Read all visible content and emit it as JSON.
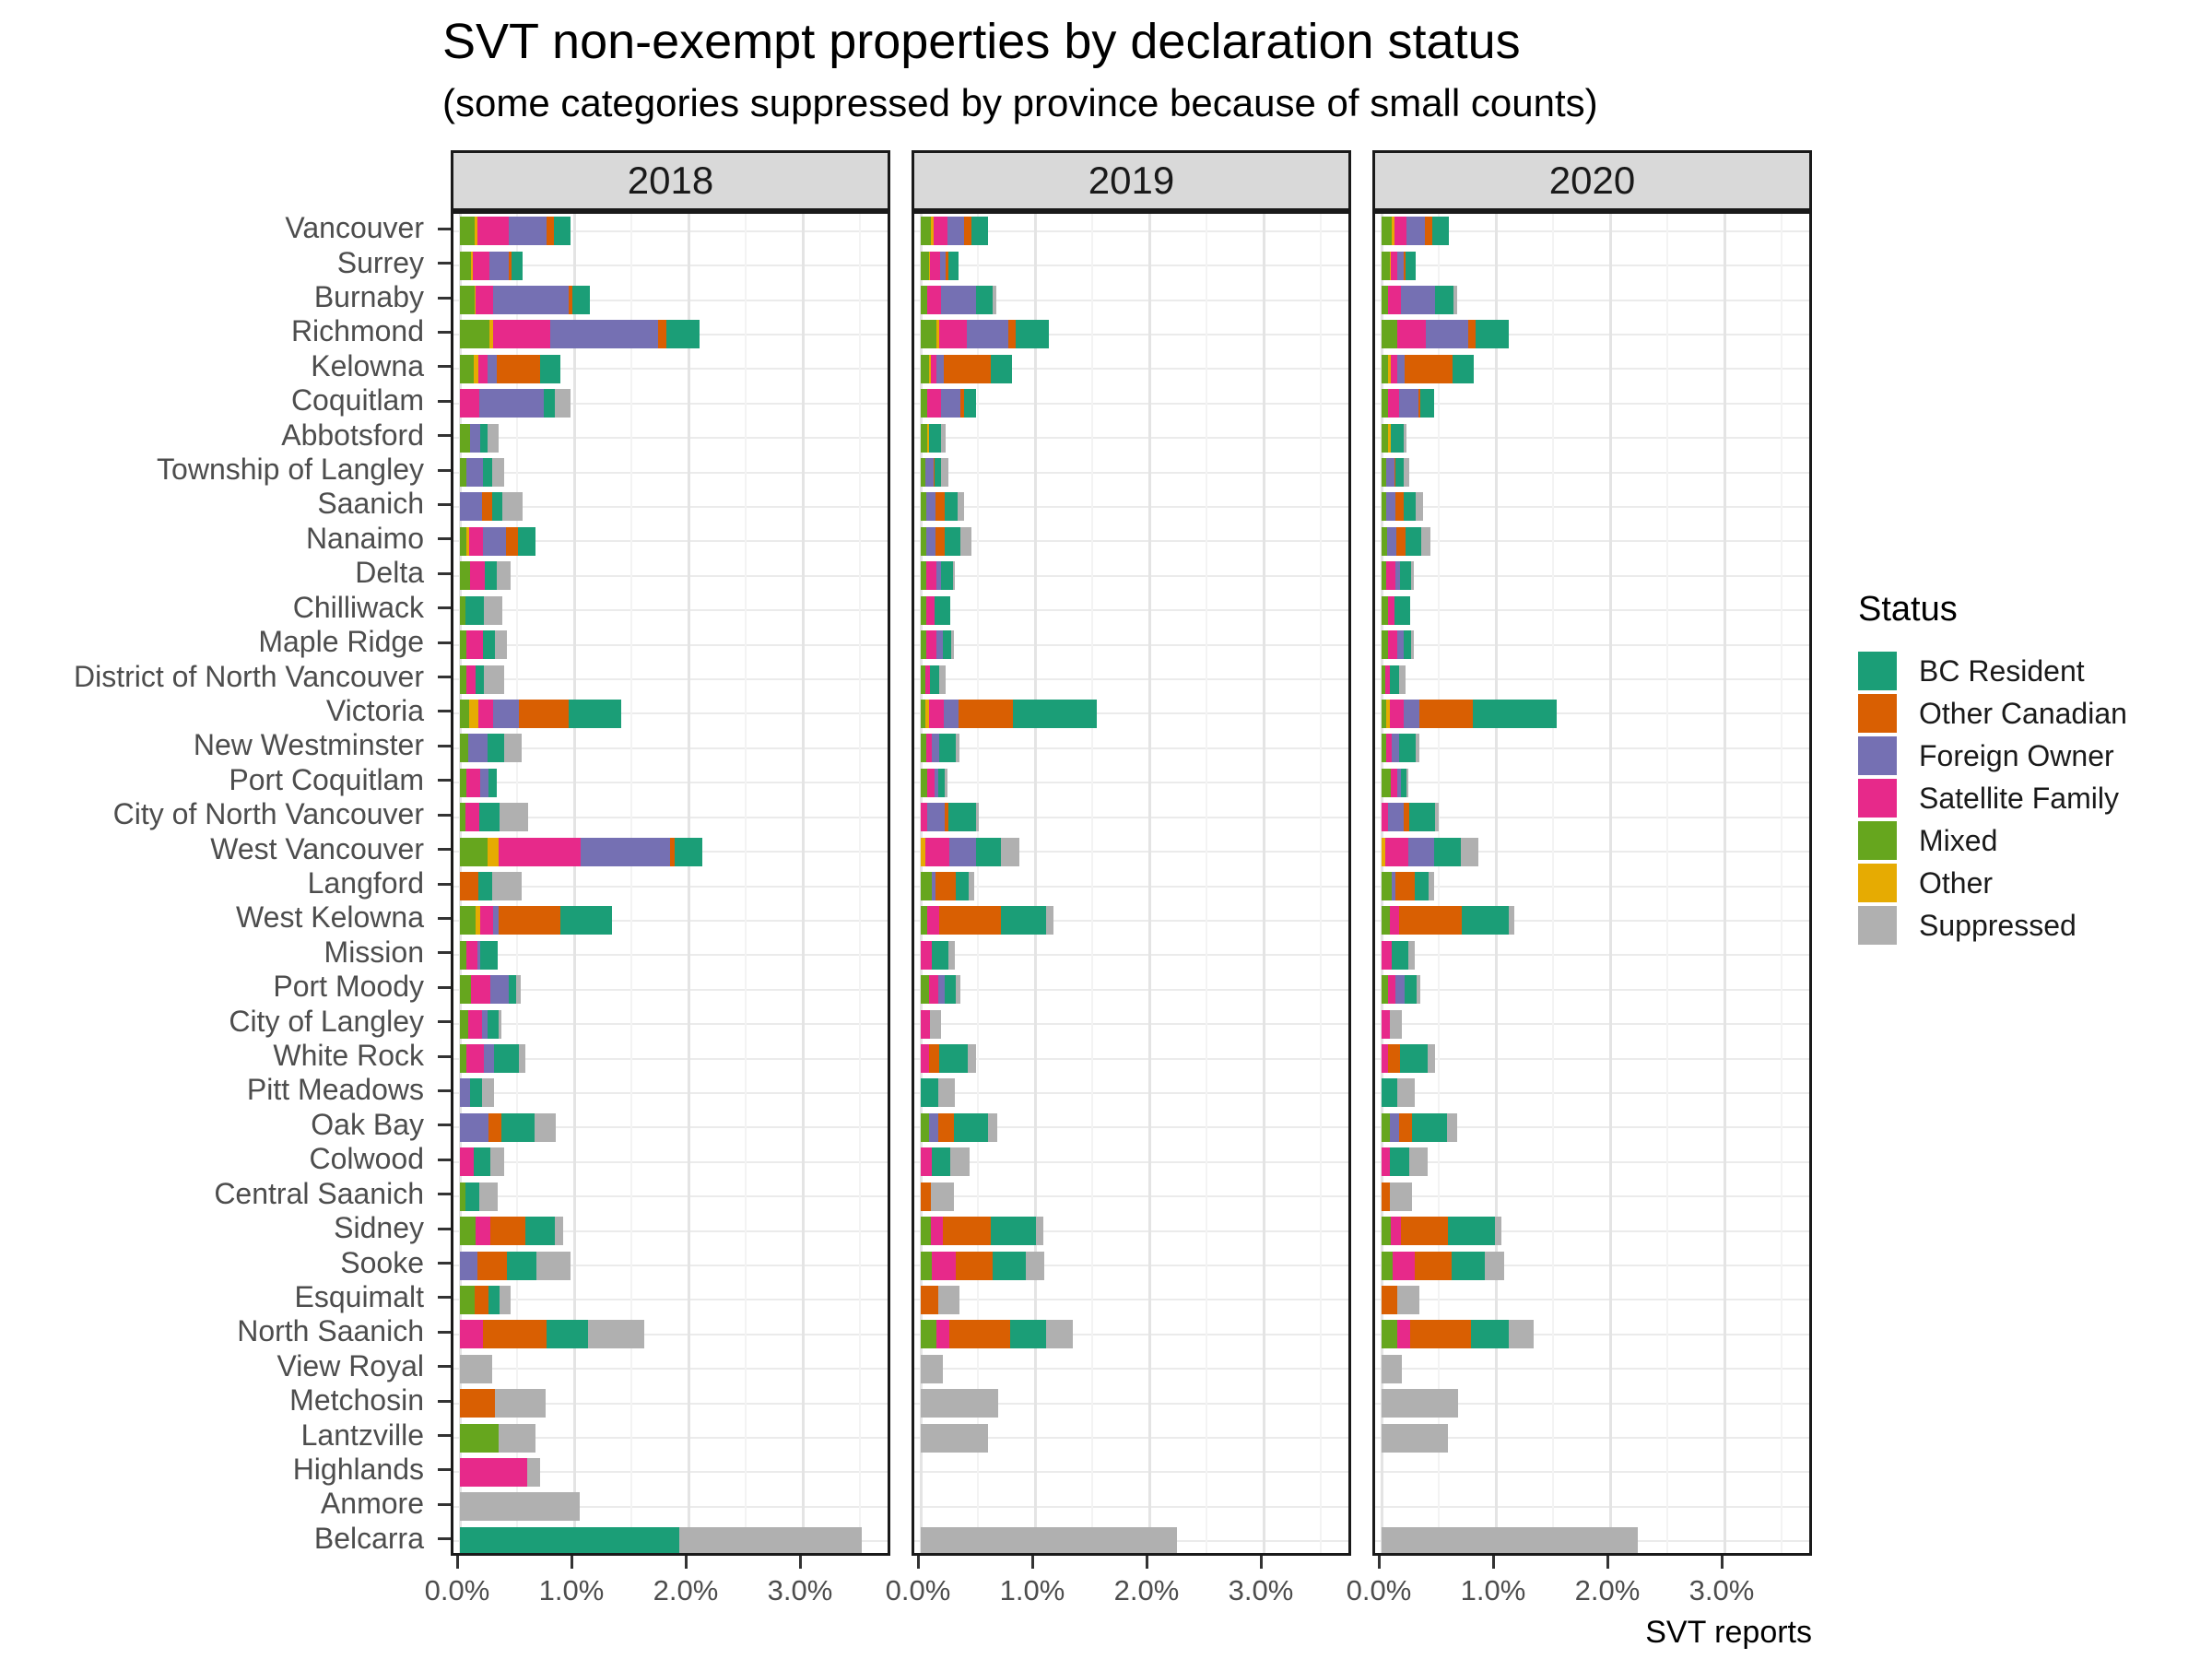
{
  "title": "SVT non-exempt properties by declaration status",
  "subtitle": "(some categories suppressed by province because of small counts)",
  "legend": {
    "title": "Status",
    "items": [
      {
        "label": "BC Resident",
        "color": "#1B9E77"
      },
      {
        "label": "Other Canadian",
        "color": "#D95F02"
      },
      {
        "label": "Foreign Owner",
        "color": "#7570B3"
      },
      {
        "label": "Satellite Family",
        "color": "#E7298A"
      },
      {
        "label": "Mixed",
        "color": "#66A61E"
      },
      {
        "label": "Other",
        "color": "#E6AB02"
      },
      {
        "label": "Suppressed",
        "color": "#B0B0B0"
      }
    ]
  },
  "chart_data": {
    "type": "bar",
    "orientation": "horizontal",
    "stacked": true,
    "grid": true,
    "legend_position": "right",
    "facets": [
      "2018",
      "2019",
      "2020"
    ],
    "xlabel": "SVT reports",
    "x_ticks": [
      "0.0%",
      "1.0%",
      "2.0%",
      "3.0%"
    ],
    "x_tick_values": [
      0,
      1,
      2,
      3
    ],
    "xlim": [
      0,
      3.79
    ],
    "stack_order": [
      "Mixed",
      "Other",
      "Satellite Family",
      "Foreign Owner",
      "Other Canadian",
      "BC Resident",
      "Suppressed"
    ],
    "stack_colors": [
      "#66A61E",
      "#E6AB02",
      "#E7298A",
      "#7570B3",
      "#D95F02",
      "#1B9E77",
      "#B0B0B0"
    ],
    "value_unit": "percent",
    "categories": [
      "Vancouver",
      "Surrey",
      "Burnaby",
      "Richmond",
      "Kelowna",
      "Coquitlam",
      "Abbotsford",
      "Township of Langley",
      "Saanich",
      "Nanaimo",
      "Delta",
      "Chilliwack",
      "Maple Ridge",
      "District of North Vancouver",
      "Victoria",
      "New Westminster",
      "Port Coquitlam",
      "City of North Vancouver",
      "West Vancouver",
      "Langford",
      "West Kelowna",
      "Mission",
      "Port Moody",
      "City of Langley",
      "White Rock",
      "Pitt Meadows",
      "Oak Bay",
      "Colwood",
      "Central Saanich",
      "Sidney",
      "Sooke",
      "Esquimalt",
      "North Saanich",
      "View Royal",
      "Metchosin",
      "Lantzville",
      "Highlands",
      "Anmore",
      "Belcarra"
    ],
    "values": {
      "2018": [
        [
          0.13,
          0.02,
          0.28,
          0.33,
          0.06,
          0.15,
          0
        ],
        [
          0.1,
          0.01,
          0.15,
          0.17,
          0.02,
          0.1,
          0
        ],
        [
          0.13,
          0.01,
          0.15,
          0.66,
          0.03,
          0.16,
          0
        ],
        [
          0.26,
          0.03,
          0.5,
          0.94,
          0.08,
          0.29,
          0
        ],
        [
          0.12,
          0.04,
          0.08,
          0.08,
          0.38,
          0.18,
          0
        ],
        [
          0,
          0,
          0.17,
          0.56,
          0,
          0.1,
          0.14
        ],
        [
          0.09,
          0,
          0,
          0.09,
          0,
          0.06,
          0.1
        ],
        [
          0.06,
          0,
          0,
          0.14,
          0,
          0.08,
          0.11
        ],
        [
          0,
          0,
          0,
          0.19,
          0.09,
          0.09,
          0.18
        ],
        [
          0.06,
          0.02,
          0.12,
          0.2,
          0.11,
          0.15,
          0
        ],
        [
          0.09,
          0,
          0.13,
          0,
          0,
          0.1,
          0.12
        ],
        [
          0.05,
          0,
          0,
          0,
          0,
          0.16,
          0.16
        ],
        [
          0.06,
          0,
          0.14,
          0,
          0,
          0.11,
          0.1
        ],
        [
          0.06,
          0,
          0.08,
          0,
          0,
          0.07,
          0.18
        ],
        [
          0.08,
          0.08,
          0.13,
          0.23,
          0.43,
          0.46,
          0
        ],
        [
          0.07,
          0,
          0,
          0.17,
          0,
          0.15,
          0.15
        ],
        [
          0.06,
          0,
          0.12,
          0.07,
          0,
          0.07,
          0
        ],
        [
          0.05,
          0,
          0.12,
          0,
          0,
          0.18,
          0.25
        ],
        [
          0.24,
          0.1,
          0.72,
          0.78,
          0.04,
          0.24,
          0
        ],
        [
          0,
          0,
          0,
          0,
          0.16,
          0.12,
          0.26
        ],
        [
          0.14,
          0.04,
          0.11,
          0.05,
          0.54,
          0.45,
          0
        ],
        [
          0.06,
          0,
          0.09,
          0.03,
          0,
          0.15,
          0
        ],
        [
          0.1,
          0,
          0.17,
          0.16,
          0,
          0.06,
          0.04
        ],
        [
          0.07,
          0,
          0.12,
          0.05,
          0,
          0.1,
          0.02
        ],
        [
          0.06,
          0,
          0.15,
          0.09,
          0,
          0.22,
          0.05
        ],
        [
          0,
          0,
          0,
          0.09,
          0,
          0.1,
          0.11
        ],
        [
          0,
          0,
          0,
          0.25,
          0.11,
          0.29,
          0.19
        ],
        [
          0,
          0,
          0.12,
          0,
          0,
          0.15,
          0.12
        ],
        [
          0.05,
          0,
          0,
          0,
          0,
          0.12,
          0.16
        ],
        [
          0.14,
          0,
          0.13,
          0,
          0.3,
          0.26,
          0.07
        ],
        [
          0,
          0,
          0,
          0.15,
          0.26,
          0.26,
          0.3
        ],
        [
          0.13,
          0,
          0,
          0,
          0.12,
          0.1,
          0.09
        ],
        [
          0,
          0,
          0.2,
          0,
          0.56,
          0.36,
          0.49
        ],
        [
          0,
          0,
          0,
          0,
          0,
          0,
          0.28
        ],
        [
          0,
          0,
          0,
          0,
          0.31,
          0,
          0.44
        ],
        [
          0.34,
          0,
          0,
          0,
          0,
          0,
          0.32
        ],
        [
          0,
          0,
          0.59,
          0,
          0,
          0,
          0.11
        ],
        [
          0,
          0,
          0,
          0,
          0,
          0,
          1.05
        ],
        [
          0,
          0,
          0,
          0,
          0,
          1.92,
          1.6
        ]
      ],
      "2019": [
        [
          0.09,
          0.02,
          0.12,
          0.15,
          0.06,
          0.15,
          0
        ],
        [
          0.07,
          0.01,
          0.09,
          0.05,
          0.02,
          0.09,
          0
        ],
        [
          0.06,
          0,
          0.12,
          0.3,
          0,
          0.15,
          0.03
        ],
        [
          0.14,
          0.02,
          0.24,
          0.37,
          0.06,
          0.29,
          0
        ],
        [
          0.07,
          0.02,
          0.05,
          0.06,
          0.41,
          0.19,
          0
        ],
        [
          0.06,
          0,
          0.12,
          0.17,
          0.03,
          0.1,
          0
        ],
        [
          0.06,
          0.01,
          0,
          0,
          0,
          0.11,
          0.04
        ],
        [
          0.04,
          0,
          0,
          0.07,
          0.01,
          0.06,
          0.06
        ],
        [
          0.05,
          0,
          0,
          0.08,
          0.08,
          0.11,
          0.06
        ],
        [
          0.05,
          0,
          0,
          0.08,
          0.08,
          0.14,
          0.09
        ],
        [
          0.05,
          0,
          0.09,
          0.04,
          0,
          0.1,
          0.02
        ],
        [
          0.05,
          0,
          0.07,
          0,
          0,
          0.14,
          0
        ],
        [
          0.05,
          0,
          0.09,
          0.05,
          0,
          0.08,
          0.02
        ],
        [
          0.04,
          0,
          0.04,
          0,
          0,
          0.08,
          0.06
        ],
        [
          0.04,
          0.03,
          0.13,
          0.13,
          0.48,
          0.73,
          0
        ],
        [
          0.05,
          0,
          0.05,
          0.06,
          0,
          0.15,
          0.03
        ],
        [
          0.06,
          0,
          0.06,
          0.03,
          0,
          0.06,
          0.02
        ],
        [
          0,
          0,
          0.06,
          0.15,
          0.03,
          0.24,
          0.03
        ],
        [
          0,
          0.04,
          0.21,
          0.23,
          0,
          0.22,
          0.16
        ],
        [
          0.1,
          0,
          0,
          0.03,
          0.18,
          0.11,
          0.05
        ],
        [
          0.06,
          0,
          0.1,
          0,
          0.54,
          0.4,
          0.06
        ],
        [
          0,
          0,
          0.1,
          0,
          0,
          0.14,
          0.06
        ],
        [
          0.07,
          0,
          0.08,
          0.06,
          0,
          0.1,
          0.04
        ],
        [
          0,
          0,
          0.08,
          0,
          0,
          0,
          0.1
        ],
        [
          0,
          0,
          0.07,
          0,
          0.09,
          0.25,
          0.07
        ],
        [
          0,
          0,
          0,
          0,
          0,
          0.15,
          0.15
        ],
        [
          0.07,
          0,
          0,
          0.08,
          0.14,
          0.3,
          0.08
        ],
        [
          0,
          0,
          0.1,
          0,
          0,
          0.16,
          0.17
        ],
        [
          0,
          0,
          0,
          0,
          0.09,
          0,
          0.2
        ],
        [
          0.09,
          0,
          0.1,
          0,
          0.42,
          0.4,
          0.06
        ],
        [
          0.1,
          0,
          0.21,
          0,
          0.32,
          0.29,
          0.16
        ],
        [
          0,
          0,
          0,
          0,
          0.15,
          0,
          0.19
        ],
        [
          0.14,
          0,
          0.11,
          0,
          0.53,
          0.32,
          0.23
        ],
        [
          0,
          0,
          0,
          0,
          0,
          0,
          0.19
        ],
        [
          0,
          0,
          0,
          0,
          0,
          0,
          0.68
        ],
        [
          0,
          0,
          0,
          0,
          0,
          0,
          0.59
        ],
        [
          0,
          0,
          0,
          0,
          0,
          0,
          0
        ],
        [
          0,
          0,
          0,
          0,
          0,
          0,
          0
        ],
        [
          0,
          0,
          0,
          0,
          0,
          0,
          2.24
        ]
      ],
      "2020": [
        [
          0.09,
          0.02,
          0.11,
          0.16,
          0.06,
          0.15,
          0
        ],
        [
          0.07,
          0.01,
          0.06,
          0.05,
          0.02,
          0.09,
          0
        ],
        [
          0.06,
          0,
          0.11,
          0.3,
          0,
          0.16,
          0.03
        ],
        [
          0.14,
          0,
          0.25,
          0.37,
          0.06,
          0.29,
          0
        ],
        [
          0.06,
          0.02,
          0.06,
          0.06,
          0.42,
          0.19,
          0
        ],
        [
          0.06,
          0,
          0.09,
          0.17,
          0.02,
          0.12,
          0
        ],
        [
          0.06,
          0.02,
          0,
          0,
          0,
          0.11,
          0.03
        ],
        [
          0.04,
          0,
          0,
          0.07,
          0.01,
          0.07,
          0.05
        ],
        [
          0.04,
          0,
          0,
          0.08,
          0.07,
          0.11,
          0.06
        ],
        [
          0.05,
          0,
          0,
          0.08,
          0.08,
          0.14,
          0.08
        ],
        [
          0.04,
          0,
          0.08,
          0.04,
          0,
          0.1,
          0.02
        ],
        [
          0.06,
          0,
          0.05,
          0,
          0,
          0.14,
          0
        ],
        [
          0.06,
          0,
          0.08,
          0.05,
          0,
          0.07,
          0.02
        ],
        [
          0.03,
          0,
          0.04,
          0,
          0,
          0.08,
          0.06
        ],
        [
          0.04,
          0.03,
          0.12,
          0.14,
          0.47,
          0.73,
          0
        ],
        [
          0.04,
          0,
          0.05,
          0.06,
          0,
          0.15,
          0.03
        ],
        [
          0.08,
          0,
          0.06,
          0.03,
          0,
          0.05,
          0.01
        ],
        [
          0,
          0,
          0.06,
          0.13,
          0.05,
          0.23,
          0.03
        ],
        [
          0,
          0.03,
          0.2,
          0.23,
          0,
          0.23,
          0.16
        ],
        [
          0.09,
          0,
          0,
          0.03,
          0.17,
          0.12,
          0.05
        ],
        [
          0.07,
          0,
          0.08,
          0,
          0.55,
          0.41,
          0.05
        ],
        [
          0,
          0,
          0.09,
          0,
          0,
          0.14,
          0.06
        ],
        [
          0.06,
          0,
          0.06,
          0.08,
          0,
          0.11,
          0.03
        ],
        [
          0,
          0,
          0.07,
          0,
          0,
          0,
          0.11
        ],
        [
          0,
          0,
          0.06,
          0,
          0.1,
          0.24,
          0.07
        ],
        [
          0,
          0,
          0,
          0,
          0,
          0.14,
          0.15
        ],
        [
          0.07,
          0,
          0,
          0.08,
          0.12,
          0.3,
          0.09
        ],
        [
          0,
          0,
          0.07,
          0,
          0,
          0.17,
          0.16
        ],
        [
          0,
          0,
          0,
          0,
          0.07,
          0,
          0.2
        ],
        [
          0.08,
          0,
          0.09,
          0,
          0.41,
          0.41,
          0.06
        ],
        [
          0.1,
          0,
          0.19,
          0,
          0.32,
          0.29,
          0.17
        ],
        [
          0,
          0,
          0,
          0,
          0.14,
          0,
          0.19
        ],
        [
          0.14,
          0,
          0.11,
          0,
          0.53,
          0.33,
          0.22
        ],
        [
          0,
          0,
          0,
          0,
          0,
          0,
          0.18
        ],
        [
          0,
          0,
          0,
          0,
          0,
          0,
          0.67
        ],
        [
          0,
          0,
          0,
          0,
          0,
          0,
          0.58
        ],
        [
          0,
          0,
          0,
          0,
          0,
          0,
          0
        ],
        [
          0,
          0,
          0,
          0,
          0,
          0,
          0
        ],
        [
          0,
          0,
          0,
          0,
          0,
          0,
          2.24
        ]
      ]
    }
  }
}
